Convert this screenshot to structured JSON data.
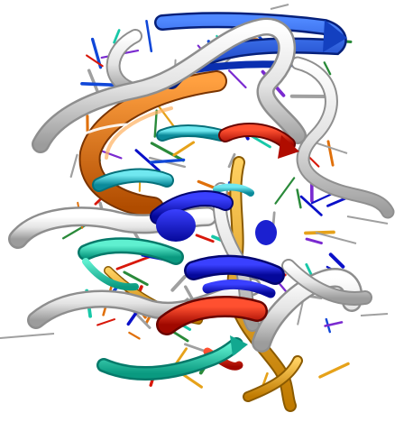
{
  "image": {
    "subject": "molecular-ribbon-render",
    "background_color": "#ffffff",
    "palette": {
      "white_ribbon": "#e6e6e6",
      "white_shadow": "#9a9a9a",
      "blue": "#1047d8",
      "dark_blue": "#0a10c8",
      "orange": "#e0700a",
      "gold": "#e6a21a",
      "cyan": "#1fb8c8",
      "teal": "#18c8a8",
      "red": "#d8180a",
      "green": "#2a8a3a",
      "purple": "#7a2ad0",
      "sticks": "#a0a0a0"
    }
  }
}
